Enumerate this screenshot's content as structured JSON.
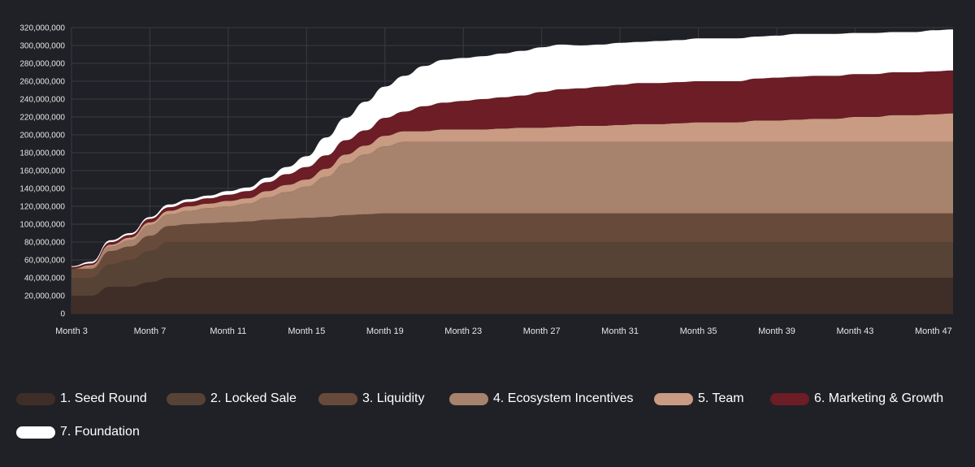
{
  "chart_data": {
    "type": "area",
    "stacked": true,
    "title": "",
    "xlabel": "",
    "ylabel": "",
    "ylim": [
      0,
      320000000
    ],
    "y_ticks": [
      0,
      20000000,
      40000000,
      60000000,
      80000000,
      100000000,
      120000000,
      140000000,
      160000000,
      180000000,
      200000000,
      220000000,
      240000000,
      260000000,
      280000000,
      300000000,
      320000000
    ],
    "y_tick_labels": [
      "0",
      "20,000,000",
      "40,000,000",
      "60,000,000",
      "80,000,000",
      "100,000,000",
      "120,000,000",
      "140,000,000",
      "160,000,000",
      "180,000,000",
      "200,000,000",
      "220,000,000",
      "240,000,000",
      "260,000,000",
      "280,000,000",
      "300,000,000",
      "320,000,000"
    ],
    "x": [
      3,
      4,
      5,
      6,
      7,
      8,
      9,
      10,
      11,
      12,
      13,
      14,
      15,
      16,
      17,
      18,
      19,
      20,
      21,
      22,
      23,
      24,
      25,
      26,
      27,
      28,
      29,
      30,
      31,
      32,
      33,
      34,
      35,
      36,
      37,
      38,
      39,
      40,
      41,
      42,
      43,
      44,
      45,
      46,
      47,
      48
    ],
    "x_tick_labels": [
      "Month 3",
      "Month 7",
      "Month 11",
      "Month 15",
      "Month 19",
      "Month 23",
      "Month 27",
      "Month 31",
      "Month 35",
      "Month 39",
      "Month 43",
      "Month 47"
    ],
    "x_tick_positions": [
      3,
      7,
      11,
      15,
      19,
      23,
      27,
      31,
      35,
      39,
      43,
      47
    ],
    "grid": true,
    "legend_position": "bottom",
    "series": [
      {
        "name": "1. Seed Round",
        "color": "#3f2e28",
        "values": [
          20000000,
          20000000,
          30000000,
          30000000,
          35000000,
          40000000,
          40000000,
          40000000,
          40000000,
          40000000,
          40000000,
          40000000,
          40000000,
          40000000,
          40000000,
          40000000,
          40000000,
          40000000,
          40000000,
          40000000,
          40000000,
          40000000,
          40000000,
          40000000,
          40000000,
          40000000,
          40000000,
          40000000,
          40000000,
          40000000,
          40000000,
          40000000,
          40000000,
          40000000,
          40000000,
          40000000,
          40000000,
          40000000,
          40000000,
          40000000,
          40000000,
          40000000,
          40000000,
          40000000,
          40000000,
          40000000
        ]
      },
      {
        "name": "2. Locked Sale",
        "color": "#574236",
        "values": [
          20000000,
          20000000,
          25000000,
          30000000,
          35000000,
          40000000,
          40000000,
          40000000,
          40000000,
          40000000,
          40000000,
          40000000,
          40000000,
          40000000,
          40000000,
          40000000,
          40000000,
          40000000,
          40000000,
          40000000,
          40000000,
          40000000,
          40000000,
          40000000,
          40000000,
          40000000,
          40000000,
          40000000,
          40000000,
          40000000,
          40000000,
          40000000,
          40000000,
          40000000,
          40000000,
          40000000,
          40000000,
          40000000,
          40000000,
          40000000,
          40000000,
          40000000,
          40000000,
          40000000,
          40000000,
          40000000
        ]
      },
      {
        "name": "3. Liquidity",
        "color": "#684a3b",
        "values": [
          10000000,
          10000000,
          15000000,
          15000000,
          17000000,
          18000000,
          20000000,
          21000000,
          22000000,
          23000000,
          25000000,
          26000000,
          27000000,
          28000000,
          30000000,
          31000000,
          32000000,
          32000000,
          32000000,
          32000000,
          32000000,
          32000000,
          32000000,
          32000000,
          32000000,
          32000000,
          32000000,
          32000000,
          32000000,
          32000000,
          32000000,
          32000000,
          32000000,
          32000000,
          32000000,
          32000000,
          32000000,
          32000000,
          32000000,
          32000000,
          32000000,
          32000000,
          32000000,
          32000000,
          32000000,
          32000000
        ]
      },
      {
        "name": "4. Ecosystem Incentives",
        "color": "#a7826c",
        "values": [
          0,
          2000000,
          5000000,
          7000000,
          12000000,
          13000000,
          15000000,
          17000000,
          18000000,
          20000000,
          25000000,
          30000000,
          35000000,
          45000000,
          58000000,
          67000000,
          75000000,
          80000000,
          80000000,
          80000000,
          80000000,
          80000000,
          80000000,
          80000000,
          80000000,
          80000000,
          80000000,
          80000000,
          80000000,
          80000000,
          80000000,
          80000000,
          80000000,
          80000000,
          80000000,
          80000000,
          80000000,
          80000000,
          80000000,
          80000000,
          80000000,
          80000000,
          80000000,
          80000000,
          80000000,
          80000000
        ]
      },
      {
        "name": "5. Team",
        "color": "#c89b82",
        "values": [
          0,
          2000000,
          2000000,
          3000000,
          3000000,
          4000000,
          5000000,
          5000000,
          6000000,
          6000000,
          7000000,
          8000000,
          8000000,
          9000000,
          10000000,
          10000000,
          12000000,
          12000000,
          12000000,
          14000000,
          14000000,
          14000000,
          15000000,
          16000000,
          16000000,
          17000000,
          18000000,
          18000000,
          19000000,
          20000000,
          20000000,
          21000000,
          22000000,
          22000000,
          22000000,
          24000000,
          24000000,
          25000000,
          26000000,
          26000000,
          28000000,
          28000000,
          30000000,
          30000000,
          31000000,
          32000000
        ]
      },
      {
        "name": "6. Marketing & Growth",
        "color": "#6c1d25",
        "values": [
          2000000,
          2000000,
          3000000,
          3000000,
          4000000,
          4000000,
          5000000,
          6000000,
          7000000,
          8000000,
          10000000,
          12000000,
          14000000,
          15000000,
          16000000,
          17000000,
          20000000,
          22000000,
          28000000,
          30000000,
          32000000,
          34000000,
          35000000,
          36000000,
          40000000,
          42000000,
          42000000,
          44000000,
          45000000,
          46000000,
          46000000,
          46000000,
          46000000,
          46000000,
          46000000,
          47000000,
          48000000,
          48000000,
          48000000,
          48000000,
          48000000,
          48000000,
          48000000,
          48000000,
          48000000,
          48000000
        ]
      },
      {
        "name": "7. Foundation",
        "color": "#ffffff",
        "values": [
          1000000,
          2000000,
          2000000,
          2000000,
          2000000,
          3000000,
          3000000,
          3000000,
          4000000,
          4000000,
          5000000,
          8000000,
          12000000,
          20000000,
          25000000,
          32000000,
          35000000,
          40000000,
          45000000,
          48000000,
          48000000,
          48000000,
          49000000,
          50000000,
          50000000,
          50000000,
          48000000,
          47000000,
          47000000,
          46000000,
          47000000,
          47000000,
          48000000,
          48000000,
          48000000,
          47000000,
          47000000,
          48000000,
          47000000,
          47000000,
          46000000,
          46000000,
          45000000,
          45000000,
          46000000,
          46000000
        ]
      }
    ]
  }
}
